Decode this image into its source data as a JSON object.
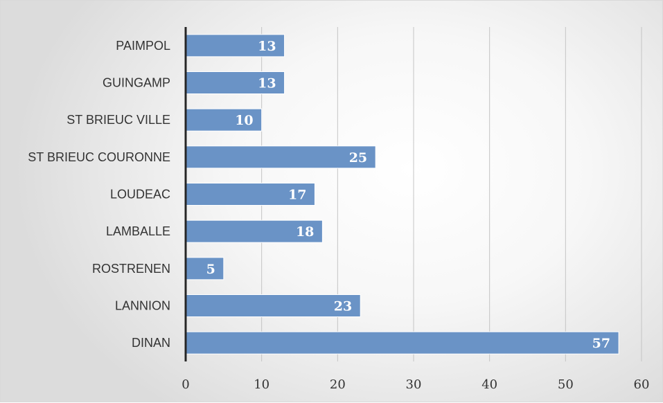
{
  "chart_data": {
    "type": "bar",
    "orientation": "horizontal",
    "categories": [
      "PAIMPOL",
      "GUINGAMP",
      "ST BRIEUC VILLE",
      "ST BRIEUC COURONNE",
      "LOUDEAC",
      "LAMBALLE",
      "ROSTRENEN",
      "LANNION",
      "DINAN"
    ],
    "values": [
      13,
      13,
      10,
      25,
      17,
      18,
      5,
      23,
      57
    ],
    "x_ticks": [
      "0",
      "10",
      "20",
      "30",
      "40",
      "50",
      "60"
    ],
    "xlim": [
      0,
      60
    ],
    "title": "",
    "xlabel": "",
    "ylabel": "",
    "grid": "vertical",
    "data_labels": "inside-end",
    "colors": {
      "bar": "#6a93c6",
      "data_label": "#ffffff",
      "axis": "#262626",
      "grid": "#c4c4c4"
    }
  }
}
